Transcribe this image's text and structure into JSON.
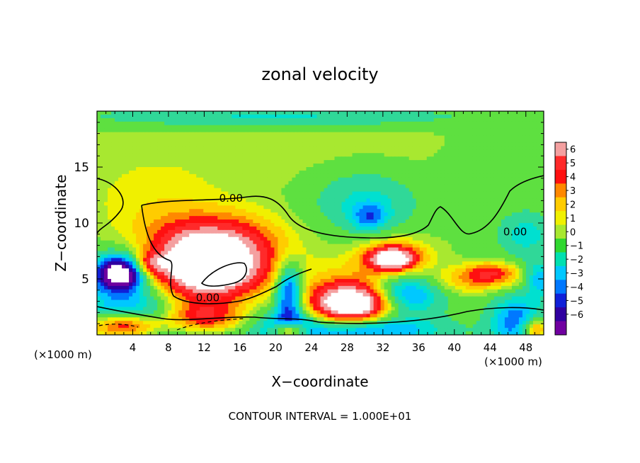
{
  "chart_data": {
    "type": "heatmap",
    "title": "zonal velocity",
    "xlabel": "X−coordinate",
    "ylabel": "Z−coordinate",
    "x_unit_left": "(×1000 m)",
    "x_unit_right": "(×1000 m)",
    "footer": "CONTOUR INTERVAL = 1.000E+01",
    "xlim": [
      0,
      50
    ],
    "ylim": [
      0,
      20
    ],
    "x_ticks": [
      4,
      8,
      12,
      16,
      20,
      24,
      28,
      32,
      36,
      40,
      44,
      48
    ],
    "y_ticks": [
      5,
      10,
      15
    ],
    "contour_labels": [
      {
        "text": "0.00",
        "x": 15,
        "y": 11.9
      },
      {
        "text": "0.00",
        "x": 12.4,
        "y": 3.0
      },
      {
        "text": "0.00",
        "x": 46.8,
        "y": 8.9
      }
    ],
    "colorbar": {
      "levels": [
        6,
        5,
        4,
        3,
        2,
        1,
        0,
        -1,
        -2,
        -3,
        -4,
        -5,
        -6
      ],
      "labels": [
        "6",
        "5",
        "4",
        "3",
        "2",
        "1",
        "0",
        "−1",
        "−2",
        "−3",
        "−4",
        "−5",
        "−6"
      ],
      "colors": [
        "#f4a0a0",
        "#ff2a2a",
        "#ff1010",
        "#ff8800",
        "#ffcc00",
        "#f0f000",
        "#a8e830",
        "#30d830",
        "#00e0b0",
        "#00c8ff",
        "#0078ff",
        "#1020d8",
        "#3000a0",
        "#7000a0"
      ]
    },
    "blobs": [
      {
        "x": 25,
        "y": 16.5,
        "rx": 40,
        "ry": 5,
        "v": 0.6
      },
      {
        "x": 6,
        "y": 11.5,
        "rx": 8,
        "ry": 4,
        "v": 1.0
      },
      {
        "x": 14,
        "y": 8.5,
        "rx": 8,
        "ry": 2.5,
        "v": 2.0
      },
      {
        "x": 30,
        "y": 12,
        "rx": 6,
        "ry": 3,
        "v": -2.0
      },
      {
        "x": 30.5,
        "y": 10.5,
        "rx": 2,
        "ry": 1.2,
        "v": -2.5
      },
      {
        "x": 20,
        "y": 19.5,
        "rx": 22,
        "ry": 1,
        "v": -2.0
      },
      {
        "x": 45,
        "y": 15.5,
        "rx": 6,
        "ry": 3,
        "v": -0.8
      },
      {
        "x": 48,
        "y": 9,
        "rx": 3,
        "ry": 2,
        "v": -2.0
      },
      {
        "x": 12.5,
        "y": 6,
        "rx": 5.5,
        "ry": 2.8,
        "v": 6.5
      },
      {
        "x": 12.5,
        "y": 6,
        "rx": 7.5,
        "ry": 4,
        "v": 3.0
      },
      {
        "x": 6,
        "y": 6.3,
        "rx": 2,
        "ry": 1,
        "v": 3.0
      },
      {
        "x": 2.5,
        "y": 5.5,
        "rx": 2.5,
        "ry": 1.4,
        "v": -7.0
      },
      {
        "x": 3,
        "y": 5,
        "rx": 4.5,
        "ry": 2.8,
        "v": -2.5
      },
      {
        "x": 28.5,
        "y": 2.8,
        "rx": 4,
        "ry": 1.6,
        "v": 6.5
      },
      {
        "x": 28.5,
        "y": 3.3,
        "rx": 6.5,
        "ry": 3,
        "v": 2.5
      },
      {
        "x": 33,
        "y": 6.8,
        "rx": 2.5,
        "ry": 1,
        "v": 6.0
      },
      {
        "x": 33.5,
        "y": 6.8,
        "rx": 4.5,
        "ry": 2,
        "v": 2.5
      },
      {
        "x": 21.5,
        "y": 3.8,
        "rx": 1.5,
        "ry": 2.5,
        "v": -5.0
      },
      {
        "x": 34.5,
        "y": 3.8,
        "rx": 4,
        "ry": 2,
        "v": -4.5
      },
      {
        "x": 42,
        "y": 4.8,
        "rx": 6,
        "ry": 1.2,
        "v": 2.0
      },
      {
        "x": 44,
        "y": 5.6,
        "rx": 3,
        "ry": 0.9,
        "v": 2.8
      },
      {
        "x": 12,
        "y": 1.5,
        "rx": 5,
        "ry": 1.6,
        "v": 6.5
      },
      {
        "x": 12,
        "y": 1.5,
        "rx": 7,
        "ry": 2.4,
        "v": -4.0
      },
      {
        "x": 3,
        "y": 0.8,
        "rx": 4,
        "ry": 1.2,
        "v": 6.5
      },
      {
        "x": 3,
        "y": 1.2,
        "rx": 5,
        "ry": 2,
        "v": -3.0
      },
      {
        "x": 21.5,
        "y": 0.4,
        "rx": 2,
        "ry": 0.8,
        "v": 6.5
      },
      {
        "x": 21.5,
        "y": 0.6,
        "rx": 3,
        "ry": 1.5,
        "v": -4.0
      },
      {
        "x": 30,
        "y": 0.4,
        "rx": 8,
        "ry": 1.2,
        "v": -4.0
      },
      {
        "x": 47,
        "y": 1.2,
        "rx": 3,
        "ry": 2.5,
        "v": -3.5
      },
      {
        "x": 49,
        "y": 0.5,
        "rx": 1.5,
        "ry": 1,
        "v": 4.0
      },
      {
        "x": 49.5,
        "y": 5,
        "rx": 1.5,
        "ry": 1.5,
        "v": -3.0
      }
    ]
  }
}
